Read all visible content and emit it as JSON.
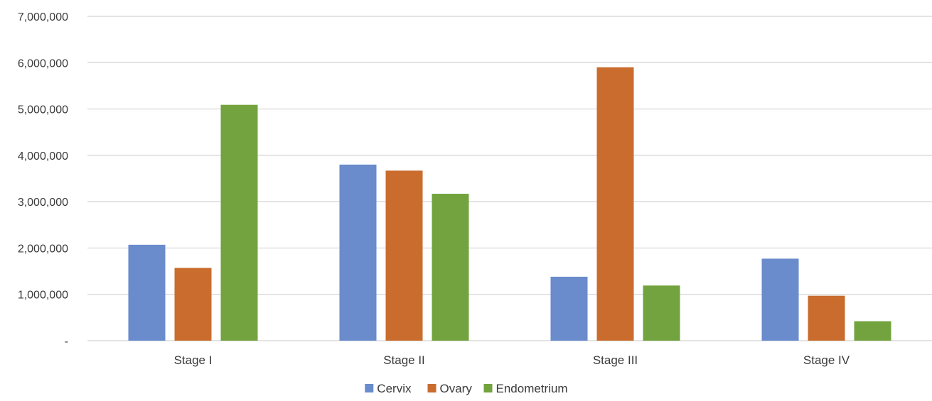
{
  "chart_data": {
    "type": "bar",
    "title": "",
    "xlabel": "",
    "ylabel": "",
    "categories": [
      "Stage I",
      "Stage II",
      "Stage III",
      "Stage IV"
    ],
    "series": [
      {
        "name": "Cervix",
        "color": "#6a8bcc",
        "values": [
          2070000,
          3800000,
          1380000,
          1770000
        ]
      },
      {
        "name": "Ovary",
        "color": "#c96c2e",
        "values": [
          1570000,
          3670000,
          5900000,
          970000
        ]
      },
      {
        "name": "Endometrium",
        "color": "#72a33e",
        "values": [
          5090000,
          3170000,
          1190000,
          420000
        ]
      }
    ],
    "ylim": [
      0,
      7000000
    ],
    "yticks": [
      0,
      1000000,
      2000000,
      3000000,
      4000000,
      5000000,
      6000000,
      7000000
    ],
    "ytick_labels": [
      "-",
      "1,000,000",
      "2,000,000",
      "3,000,000",
      "4,000,000",
      "5,000,000",
      "6,000,000",
      "7,000,000"
    ],
    "grid": true,
    "legend": "bottom-center"
  }
}
